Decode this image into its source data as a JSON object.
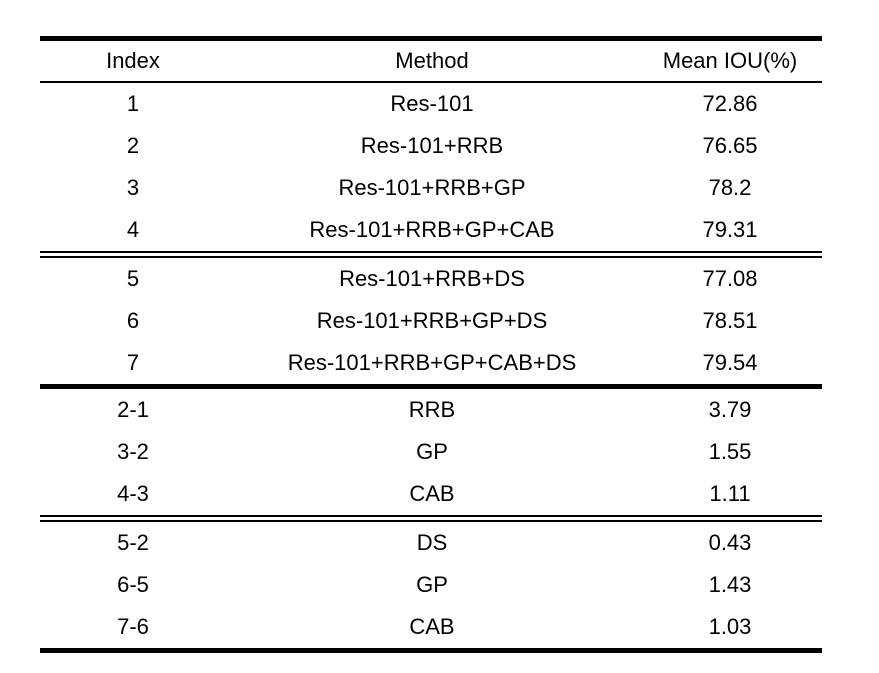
{
  "chart_data": {
    "type": "table",
    "columns": [
      "Index",
      "Method",
      "Mean IOU(%)"
    ],
    "groups": [
      {
        "rows": [
          {
            "index": "1",
            "method": "Res-101",
            "miou": "72.86"
          },
          {
            "index": "2",
            "method": "Res-101+RRB",
            "miou": "76.65"
          },
          {
            "index": "3",
            "method": "Res-101+RRB+GP",
            "miou": "78.2"
          },
          {
            "index": "4",
            "method": "Res-101+RRB+GP+CAB",
            "miou": "79.31"
          }
        ]
      },
      {
        "rows": [
          {
            "index": "5",
            "method": "Res-101+RRB+DS",
            "miou": "77.08"
          },
          {
            "index": "6",
            "method": "Res-101+RRB+GP+DS",
            "miou": "78.51"
          },
          {
            "index": "7",
            "method": "Res-101+RRB+GP+CAB+DS",
            "miou": "79.54"
          }
        ]
      },
      {
        "rows": [
          {
            "index": "2-1",
            "method": "RRB",
            "miou": "3.79"
          },
          {
            "index": "3-2",
            "method": "GP",
            "miou": "1.55"
          },
          {
            "index": "4-3",
            "method": "CAB",
            "miou": "1.11"
          }
        ]
      },
      {
        "rows": [
          {
            "index": "5-2",
            "method": "DS",
            "miou": "0.43"
          },
          {
            "index": "6-5",
            "method": "GP",
            "miou": "1.43"
          },
          {
            "index": "7-6",
            "method": "CAB",
            "miou": "1.03"
          }
        ]
      }
    ],
    "separators": [
      "double",
      "thick",
      "double"
    ]
  }
}
